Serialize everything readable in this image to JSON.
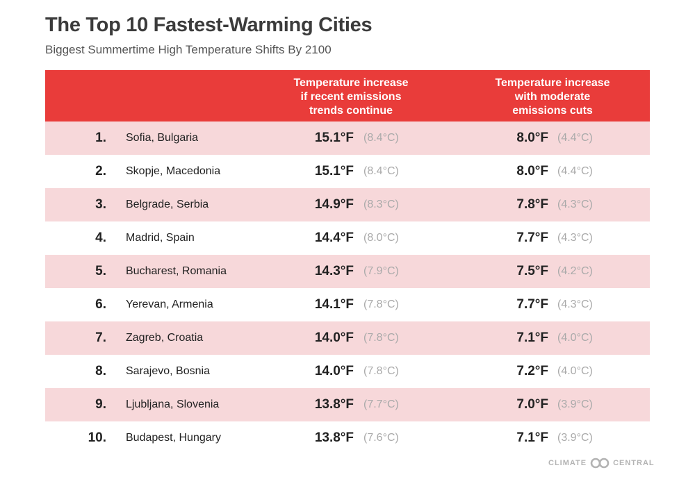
{
  "title": "The Top 10 Fastest-Warming Cities",
  "subtitle": "Biggest Summertime High Temperature Shifts By 2100",
  "logo": {
    "left": "CLIMATE",
    "right": "CENTRAL"
  },
  "colors": {
    "header": "#e93c3a",
    "row_shade": "#f7d8da",
    "celsius_text": "#aaaaaa"
  },
  "chart_data": {
    "type": "table",
    "columns": [
      "",
      "",
      "Temperature increase if recent emissions trends continue",
      "Temperature increase with moderate emissions cuts"
    ],
    "header_lines": {
      "col1": [
        "Temperature increase",
        "if recent emissions",
        "trends continue"
      ],
      "col2": [
        "Temperature increase",
        "with moderate",
        "emissions cuts"
      ]
    },
    "rows": [
      {
        "rank": "1.",
        "city": "Sofia, Bulgaria",
        "high_f": "15.1°F",
        "high_c": "(8.4°C)",
        "mod_f": "8.0°F",
        "mod_c": "(4.4°C)"
      },
      {
        "rank": "2.",
        "city": "Skopje, Macedonia",
        "high_f": "15.1°F",
        "high_c": "(8.4°C)",
        "mod_f": "8.0°F",
        "mod_c": "(4.4°C)"
      },
      {
        "rank": "3.",
        "city": "Belgrade, Serbia",
        "high_f": "14.9°F",
        "high_c": "(8.3°C)",
        "mod_f": "7.8°F",
        "mod_c": "(4.3°C)"
      },
      {
        "rank": "4.",
        "city": "Madrid, Spain",
        "high_f": "14.4°F",
        "high_c": "(8.0°C)",
        "mod_f": "7.7°F",
        "mod_c": "(4.3°C)"
      },
      {
        "rank": "5.",
        "city": "Bucharest, Romania",
        "high_f": "14.3°F",
        "high_c": "(7.9°C)",
        "mod_f": "7.5°F",
        "mod_c": "(4.2°C)"
      },
      {
        "rank": "6.",
        "city": "Yerevan, Armenia",
        "high_f": "14.1°F",
        "high_c": "(7.8°C)",
        "mod_f": "7.7°F",
        "mod_c": "(4.3°C)"
      },
      {
        "rank": "7.",
        "city": "Zagreb, Croatia",
        "high_f": "14.0°F",
        "high_c": "(7.8°C)",
        "mod_f": "7.1°F",
        "mod_c": "(4.0°C)"
      },
      {
        "rank": "8.",
        "city": "Sarajevo, Bosnia",
        "high_f": "14.0°F",
        "high_c": "(7.8°C)",
        "mod_f": "7.2°F",
        "mod_c": "(4.0°C)"
      },
      {
        "rank": "9.",
        "city": "Ljubljana, Slovenia",
        "high_f": "13.8°F",
        "high_c": "(7.7°C)",
        "mod_f": "7.0°F",
        "mod_c": "(3.9°C)"
      },
      {
        "rank": "10.",
        "city": "Budapest, Hungary",
        "high_f": "13.8°F",
        "high_c": "(7.6°C)",
        "mod_f": "7.1°F",
        "mod_c": "(3.9°C)"
      }
    ]
  }
}
